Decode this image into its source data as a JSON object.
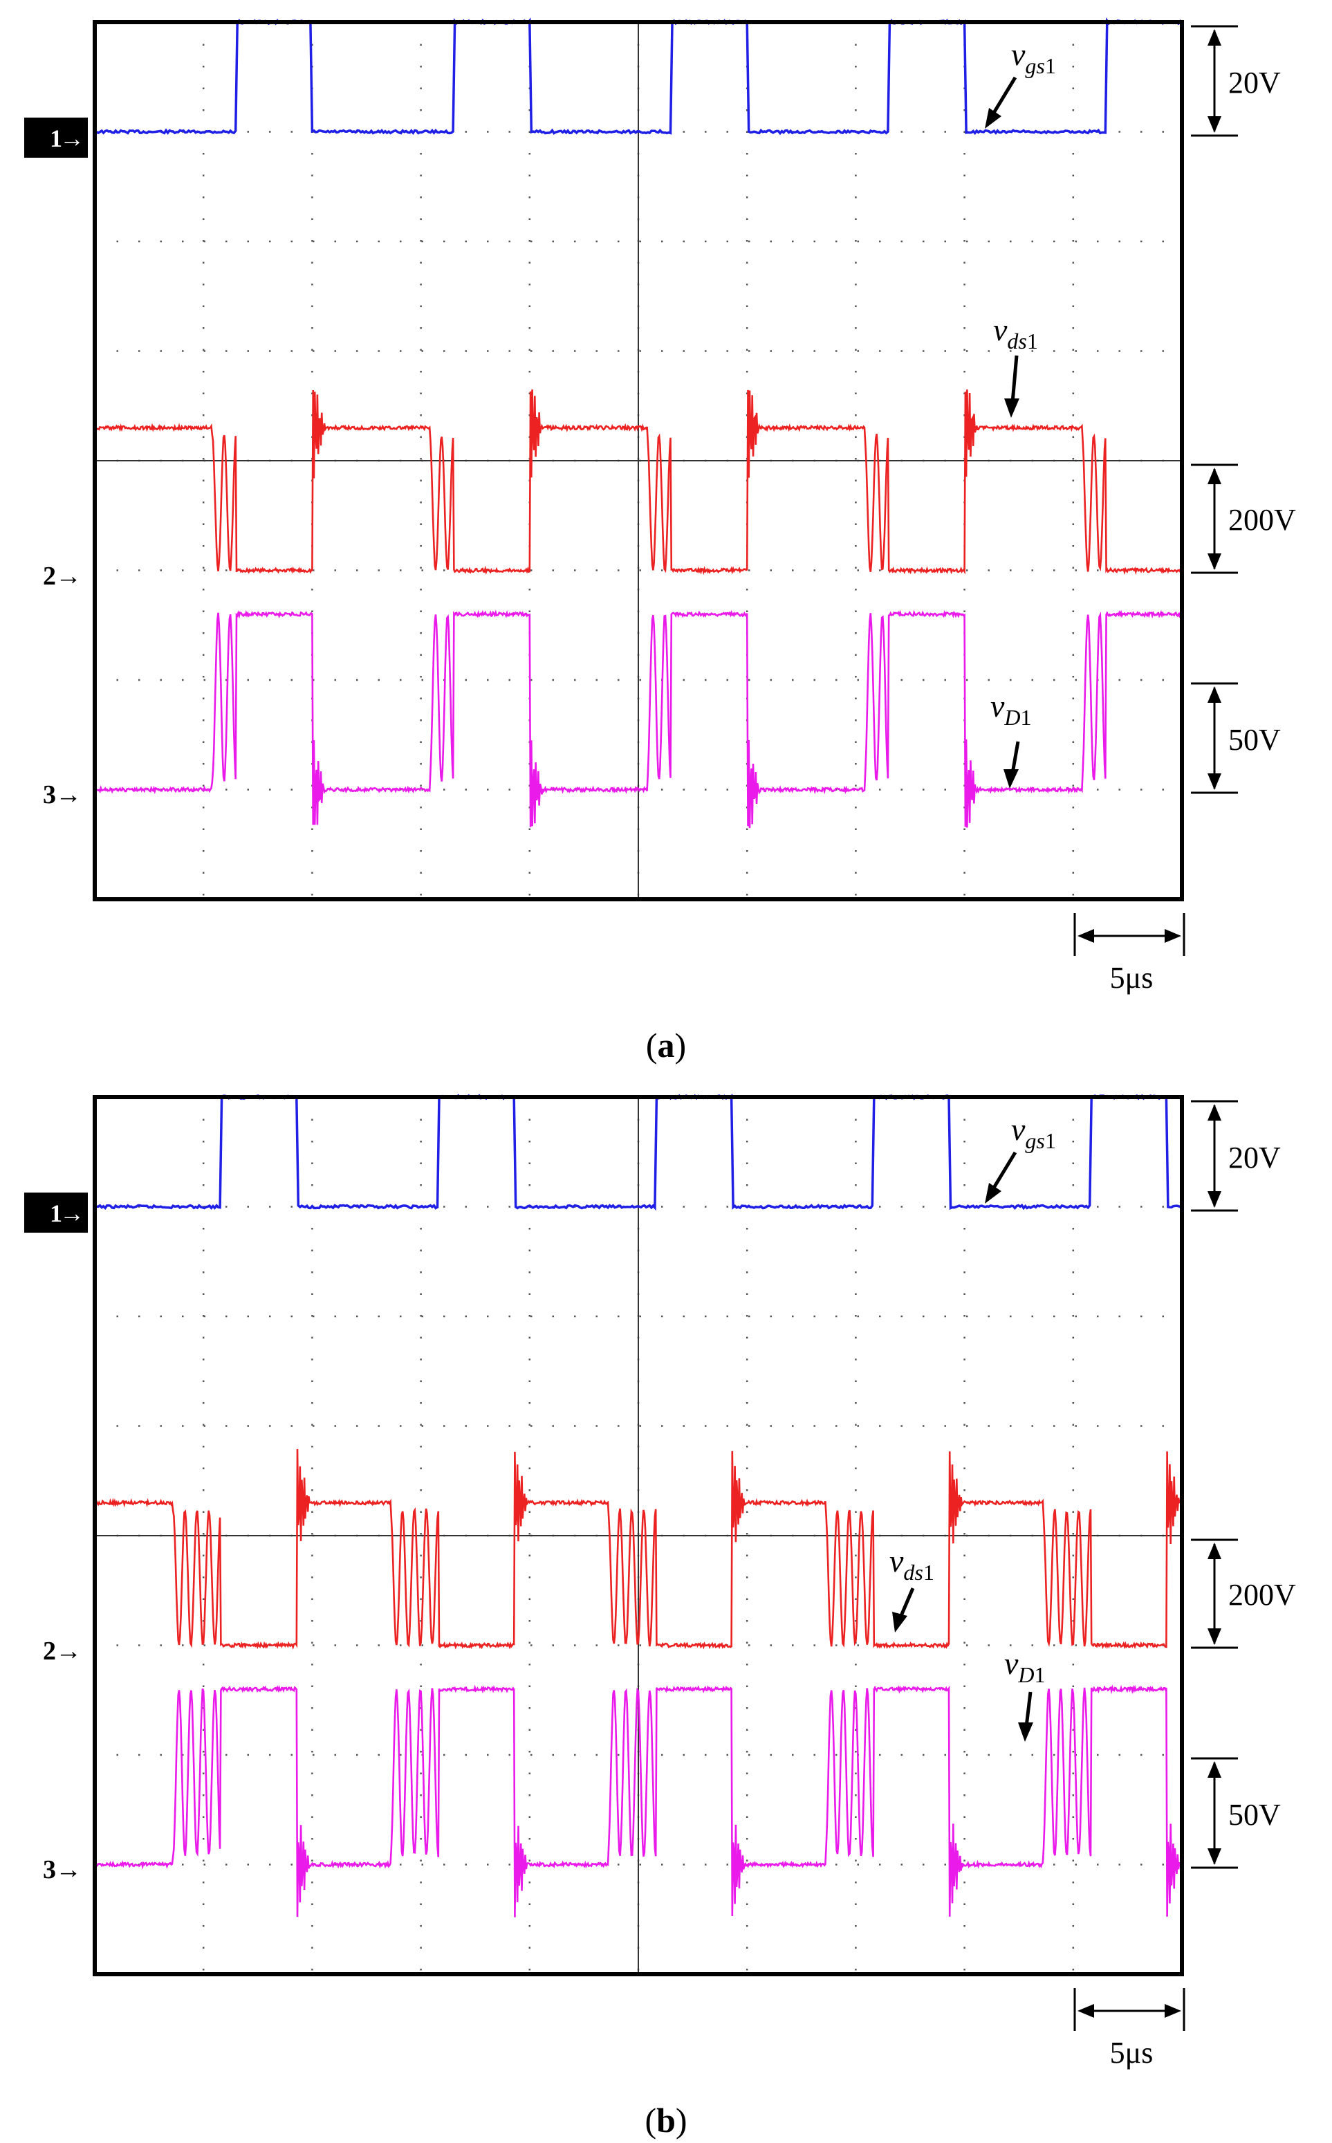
{
  "colors": {
    "vgs": "#1f1fe6",
    "vds": "#ec2222",
    "vd": "#ea1aea",
    "grid": "#555555",
    "frame": "#000000",
    "marker_bg": "#000000",
    "marker_fg": "#ffffff"
  },
  "chart_data": [
    {
      "type": "line",
      "title": "",
      "caption": "(a)",
      "caption_label": "a",
      "time_scale": "5μs",
      "x_range_us": [
        0,
        50
      ],
      "y_range_div": [
        0,
        8
      ],
      "grid": true,
      "channels": [
        {
          "marker": "1",
          "label_base": "v",
          "label_sub": "gs",
          "label_num": "1",
          "scale": "20V",
          "unit_per_div": 20,
          "baseline_div": 7,
          "high_div": 8,
          "color_key": "vgs"
        },
        {
          "marker": "2",
          "label_base": "v",
          "label_sub": "ds",
          "label_num": "1",
          "scale": "200V",
          "unit_per_div": 200,
          "baseline_div": 3,
          "high_div": 4.3,
          "color_key": "vds"
        },
        {
          "marker": "3",
          "label_base": "v",
          "label_sub": "D",
          "label_num": "1",
          "scale": "50V",
          "unit_per_div": 50,
          "baseline_div": 1,
          "high_div": 2.6,
          "color_key": "vd"
        }
      ],
      "period_us": 10,
      "gate_rise_us": [
        6.5,
        16.5,
        26.5,
        36.5,
        46.5
      ],
      "gate_fall_us": [
        10,
        20,
        30,
        40,
        50
      ],
      "ringing_cycles": 2
    },
    {
      "type": "line",
      "title": "",
      "caption": "(b)",
      "caption_label": "b",
      "time_scale": "5μs",
      "x_range_us": [
        0,
        50
      ],
      "y_range_div": [
        0,
        8
      ],
      "grid": true,
      "channels": [
        {
          "marker": "1",
          "label_base": "v",
          "label_sub": "gs",
          "label_num": "1",
          "scale": "20V",
          "unit_per_div": 20,
          "baseline_div": 7,
          "high_div": 8,
          "color_key": "vgs"
        },
        {
          "marker": "2",
          "label_base": "v",
          "label_sub": "ds",
          "label_num": "1",
          "scale": "200V",
          "unit_per_div": 200,
          "baseline_div": 3,
          "high_div": 4.3,
          "color_key": "vds"
        },
        {
          "marker": "3",
          "label_base": "v",
          "label_sub": "D",
          "label_num": "1",
          "scale": "50V",
          "unit_per_div": 50,
          "baseline_div": 1,
          "high_div": 2.6,
          "color_key": "vd"
        }
      ],
      "period_us": 10,
      "gate_rise_us": [
        5.8,
        15.8,
        25.8,
        35.8,
        45.8
      ],
      "gate_fall_us": [
        9.3,
        19.3,
        29.3,
        39.3,
        49.3
      ],
      "ringing_cycles": 4
    }
  ]
}
